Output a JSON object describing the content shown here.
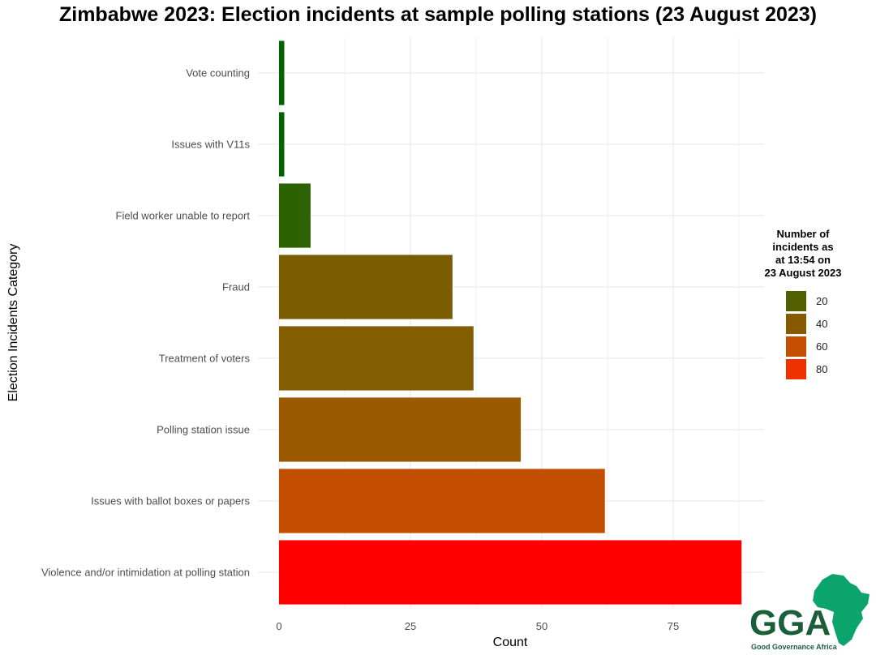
{
  "chart_data": {
    "type": "bar",
    "orientation": "horizontal",
    "title": "Zimbabwe 2023: Election incidents at sample polling stations (23 August 2023)",
    "xlabel": "Count",
    "ylabel": "Election Incidents Category",
    "categories": [
      "Vote counting",
      "Issues with V11s",
      "Field worker unable to report",
      "Fraud",
      "Treatment of voters",
      "Polling station issue",
      "Issues with ballot boxes or papers",
      "Violence and/or intimidation at polling station"
    ],
    "values": [
      1,
      1,
      6,
      33,
      37,
      46,
      62,
      88
    ],
    "colors": [
      "#006400",
      "#006400",
      "#2c6300",
      "#7a5d00",
      "#825e00",
      "#9c5a00",
      "#c44e00",
      "#ff0000"
    ],
    "xlim": [
      0,
      90
    ],
    "xticks": [
      0,
      25,
      50,
      75
    ],
    "grid": true,
    "legend": {
      "title": "Number of incidents as at 13:54 on 23 August 2023",
      "title_lines": [
        "Number of",
        "incidents as",
        "at 13:54 on",
        "23 August 2023"
      ],
      "placement": "right",
      "items": [
        {
          "label": "20",
          "color": "#525f00"
        },
        {
          "label": "40",
          "color": "#885a00"
        },
        {
          "label": "60",
          "color": "#c44f00"
        },
        {
          "label": "80",
          "color": "#f13000"
        }
      ]
    }
  },
  "logo": {
    "text": "GGA",
    "subtitle": "Good Governance Africa",
    "color": "#0aa46c",
    "dark": "#1b5e3a"
  }
}
